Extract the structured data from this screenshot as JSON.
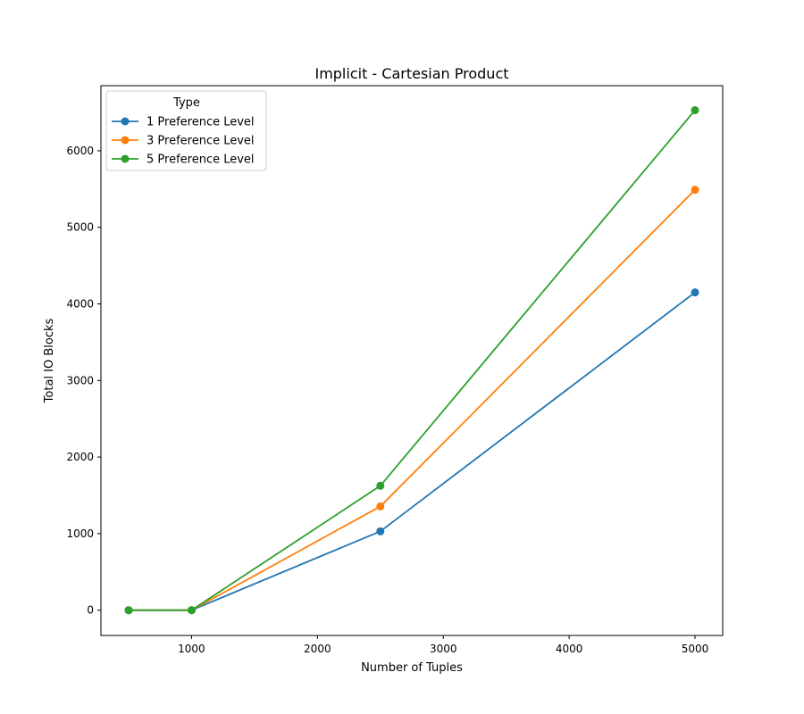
{
  "chart_data": {
    "type": "line",
    "title": "Implicit - Cartesian Product",
    "xlabel": "Number of Tuples",
    "ylabel": "Total IO Blocks",
    "x": [
      500,
      1000,
      2500,
      5000
    ],
    "xlim": [
      280,
      5220
    ],
    "ylim": [
      -330,
      6850
    ],
    "xticks": [
      1000,
      2000,
      3000,
      4000,
      5000
    ],
    "yticks": [
      0,
      1000,
      2000,
      3000,
      4000,
      5000,
      6000
    ],
    "xtick_labels": [
      "1000",
      "2000",
      "3000",
      "4000",
      "5000"
    ],
    "ytick_labels": [
      "0",
      "1000",
      "2000",
      "3000",
      "4000",
      "5000",
      "6000"
    ],
    "grid": false,
    "legend": {
      "title": "Type",
      "position": "top-left"
    },
    "series": [
      {
        "name": "1 Preference Level",
        "color": "#1f77b4",
        "values": [
          0,
          0,
          1030,
          4150
        ]
      },
      {
        "name": "3 Preference Level",
        "color": "#ff7f0e",
        "values": [
          0,
          0,
          1355,
          5490
        ]
      },
      {
        "name": "5 Preference Level",
        "color": "#2ca02c",
        "values": [
          0,
          0,
          1625,
          6530
        ]
      }
    ]
  }
}
